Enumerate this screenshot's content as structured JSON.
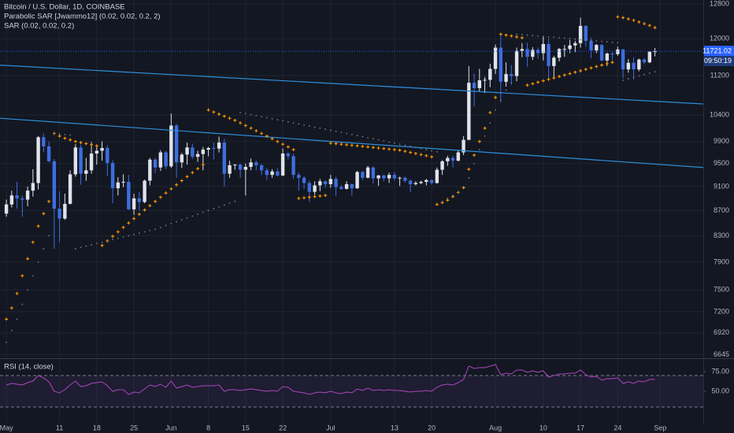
{
  "chart_data": [
    {
      "type": "candlestick",
      "title": "Bitcoin / U.S. Dollar, 1D, COINBASE",
      "open": [
        8650,
        8800,
        8950,
        8900,
        8880,
        9030,
        9160,
        9980,
        9810,
        9540,
        8730,
        8570,
        8810,
        9310,
        9790,
        9320,
        9380,
        9680,
        9730,
        9780,
        9510,
        9070,
        9170,
        9180,
        8720,
        8900,
        8840,
        9200,
        9570,
        9430,
        9700,
        9450,
        10200,
        9520,
        9660,
        9790,
        9620,
        9670,
        9750,
        9780,
        9770,
        9880,
        9320,
        9470,
        9480,
        9390,
        9440,
        9520,
        9470,
        9380,
        9300,
        9360,
        9290,
        9680,
        9630,
        9300,
        9250,
        9160,
        9010,
        9120,
        9190,
        9140,
        9230,
        9090,
        9060,
        9140,
        9070,
        9350,
        9250,
        9430,
        9240,
        9290,
        9240,
        9300,
        9240,
        9250,
        9200,
        9140,
        9160,
        9180,
        9210,
        9160,
        9390,
        9540,
        9600,
        9550,
        9700,
        9930,
        11050,
        10940,
        11100,
        11110,
        11340,
        11800,
        11070,
        11230,
        11190,
        11730,
        11770,
        11600,
        11750,
        11680,
        11880,
        11400,
        11580,
        11770,
        11770,
        11850,
        11900,
        12290,
        11950,
        11740,
        11860,
        11520,
        11670,
        11660,
        11760,
        11330,
        11470,
        11330,
        11540,
        11480,
        11710
      ],
      "high": [
        8880,
        9030,
        9180,
        8950,
        9100,
        9400,
        10000,
        10050,
        9900,
        9580,
        9020,
        8980,
        9380,
        9850,
        9840,
        9600,
        9890,
        9830,
        9900,
        9830,
        9560,
        9260,
        9310,
        9300,
        8980,
        9010,
        9220,
        9600,
        9600,
        9740,
        9730,
        10430,
        10230,
        9690,
        9880,
        9860,
        9730,
        9800,
        9800,
        9880,
        9990,
        9950,
        9550,
        9490,
        9500,
        9500,
        9590,
        9550,
        9490,
        9420,
        9400,
        9420,
        9770,
        9700,
        9680,
        9340,
        9280,
        9200,
        9190,
        9230,
        9200,
        9300,
        9270,
        9130,
        9190,
        9150,
        9370,
        9370,
        9460,
        9450,
        9300,
        9310,
        9340,
        9350,
        9270,
        9270,
        9220,
        9190,
        9200,
        9230,
        9220,
        9430,
        9560,
        9640,
        9640,
        9730,
        10000,
        11400,
        11240,
        11340,
        11170,
        11450,
        11870,
        12100,
        11480,
        11420,
        11800,
        11900,
        11910,
        11810,
        11800,
        12060,
        12000,
        11620,
        11790,
        11860,
        11970,
        11950,
        12480,
        12300,
        12020,
        11880,
        11880,
        11690,
        11700,
        11820,
        11770,
        11550,
        11590,
        11560,
        11570,
        11720,
        11790
      ],
      "low": [
        8600,
        8750,
        8730,
        8600,
        8770,
        8930,
        9050,
        9700,
        9520,
        8100,
        8200,
        8550,
        8800,
        9270,
        9130,
        9200,
        9320,
        9480,
        9550,
        9280,
        8820,
        8950,
        9090,
        8710,
        8630,
        8700,
        8820,
        9120,
        9330,
        9370,
        9400,
        9420,
        9250,
        9420,
        9480,
        9580,
        9530,
        9380,
        9630,
        9570,
        9700,
        9100,
        9250,
        9390,
        9250,
        8950,
        9380,
        9380,
        9300,
        9210,
        9250,
        9270,
        9280,
        9570,
        9230,
        9030,
        9060,
        8840,
        8960,
        9020,
        9080,
        9080,
        8940,
        9050,
        9050,
        8940,
        9060,
        9210,
        9240,
        9150,
        9110,
        9190,
        9160,
        9200,
        9110,
        9170,
        9000,
        9120,
        9140,
        9120,
        9130,
        9150,
        9300,
        9460,
        9430,
        9540,
        9650,
        9930,
        10570,
        10860,
        10840,
        10960,
        11230,
        10650,
        10970,
        11010,
        11080,
        11590,
        11390,
        11530,
        11560,
        11520,
        11140,
        11160,
        11500,
        11600,
        11680,
        11700,
        11800,
        11820,
        11570,
        11680,
        11500,
        11400,
        11530,
        11620,
        11140,
        11260,
        11120,
        11290,
        11440,
        11460,
        11610
      ],
      "close": [
        8800,
        8950,
        8900,
        8880,
        9030,
        9160,
        9980,
        9810,
        9540,
        8730,
        8570,
        8810,
        9310,
        9790,
        9320,
        9380,
        9680,
        9730,
        9780,
        9510,
        9070,
        9170,
        9180,
        8720,
        8900,
        8840,
        9200,
        9570,
        9430,
        9700,
        9450,
        10200,
        9520,
        9660,
        9790,
        9620,
        9670,
        9750,
        9780,
        9770,
        9880,
        9320,
        9470,
        9480,
        9390,
        9440,
        9520,
        9470,
        9380,
        9300,
        9360,
        9290,
        9680,
        9630,
        9300,
        9250,
        9160,
        9010,
        9120,
        9190,
        9140,
        9230,
        9090,
        9060,
        9140,
        9070,
        9350,
        9250,
        9430,
        9240,
        9290,
        9240,
        9300,
        9240,
        9250,
        9200,
        9140,
        9160,
        9180,
        9210,
        9160,
        9390,
        9540,
        9600,
        9550,
        9700,
        9930,
        11050,
        10940,
        11100,
        11110,
        11340,
        11800,
        11070,
        11230,
        11190,
        11730,
        11770,
        11600,
        11750,
        11680,
        11880,
        11400,
        11580,
        11770,
        11770,
        11850,
        11900,
        12290,
        11950,
        11740,
        11860,
        11520,
        11670,
        11660,
        11760,
        11330,
        11470,
        11330,
        11540,
        11480,
        11710,
        11721
      ],
      "up_color": "#e0e3eb",
      "down_color": "#3d6ee0",
      "log_scale": true,
      "grid": true,
      "xlim": [
        -1.2,
        131.1
      ],
      "xticks": [
        {
          "value": 0,
          "label": "May"
        },
        {
          "value": 10,
          "label": "11"
        },
        {
          "value": 17,
          "label": "18"
        },
        {
          "value": 24,
          "label": "25"
        },
        {
          "value": 31,
          "label": "Jun"
        },
        {
          "value": 38,
          "label": "8"
        },
        {
          "value": 45,
          "label": "15"
        },
        {
          "value": 52,
          "label": "22"
        },
        {
          "value": 61,
          "label": "Jul"
        },
        {
          "value": 73,
          "label": "13"
        },
        {
          "value": 80,
          "label": "20"
        },
        {
          "value": 92,
          "label": "Aug"
        },
        {
          "value": 101,
          "label": "10"
        },
        {
          "value": 108,
          "label": "17"
        },
        {
          "value": 115,
          "label": "24"
        },
        {
          "value": 123,
          "label": "Sep"
        }
      ],
      "ylim": [
        6600,
        12900
      ],
      "yticks": [
        12800,
        12000,
        11200,
        10400,
        9900,
        9500,
        9100,
        8700,
        8300,
        7900,
        7500,
        7200,
        6920,
        6645
      ],
      "series": [
        {
          "name": "Parabolic SAR [Jwammo12] (0.02, 0.02, 0.2, 2)",
          "color": "#ff9800",
          "values": [
            7100,
            7250,
            7450,
            7700,
            7950,
            8200,
            8450,
            8650,
            8850,
            10050,
            10000,
            9960,
            9930,
            9900,
            9880,
            9860,
            9840,
            9820,
            8150,
            8220,
            8290,
            8360,
            8430,
            8500,
            8570,
            8640,
            8710,
            8780,
            8850,
            8920,
            8990,
            9060,
            9130,
            9200,
            9270,
            9340,
            9410,
            9480,
            10500,
            10460,
            10420,
            10380,
            10340,
            10300,
            10250,
            10200,
            10150,
            10100,
            10050,
            10000,
            9950,
            9900,
            9850,
            9800,
            9750,
            8900,
            8910,
            8920,
            8930,
            8940,
            8950,
            9870,
            9860,
            9850,
            9840,
            9830,
            9820,
            9810,
            9800,
            9790,
            9780,
            9770,
            9760,
            9750,
            9740,
            9720,
            9700,
            9680,
            9660,
            9640,
            9620,
            8800,
            8830,
            8870,
            8930,
            9000,
            9080,
            9400,
            9650,
            9900,
            10150,
            10450,
            10750,
            12100,
            12080,
            12060,
            12040,
            12020,
            11000,
            11030,
            11060,
            11090,
            11120,
            11150,
            11180,
            11210,
            11240,
            11270,
            11300,
            11330,
            11360,
            11390,
            11420,
            11450,
            11480,
            12500,
            12480,
            12450,
            12420,
            12380,
            12340,
            12300,
            12250
          ]
        },
        {
          "name": "SAR (0.02, 0.02, 0.2)",
          "color": "#787b86",
          "values": [
            6800,
            6950,
            7100,
            7300,
            7500,
            7700,
            7900,
            8100,
            8300,
            10050,
            10040,
            10030,
            10020,
            8100,
            8120,
            8140,
            8160,
            8180,
            8200,
            8220,
            8240,
            8260,
            8280,
            8300,
            8320,
            8340,
            8360,
            8380,
            8400,
            8430,
            8460,
            8490,
            8520,
            8550,
            8580,
            8610,
            8640,
            8670,
            8700,
            8730,
            8760,
            8790,
            8820,
            8850,
            10450,
            10430,
            10410,
            10390,
            10370,
            10350,
            10330,
            10310,
            10290,
            10270,
            10250,
            10230,
            10210,
            10190,
            10170,
            10150,
            10130,
            10110,
            10090,
            10070,
            10050,
            10030,
            10010,
            9990,
            9970,
            9950,
            9930,
            9910,
            9890,
            9870,
            9850,
            9830,
            9810,
            9790,
            9770,
            9750,
            9730,
            9710,
            8850,
            8900,
            8950,
            9000,
            9100,
            9250,
            9500,
            9750,
            10000,
            10250,
            10500,
            10700,
            10900,
            11050,
            12100,
            12090,
            12080,
            12070,
            12060,
            12050,
            12040,
            12030,
            12020,
            12010,
            12000,
            11990,
            11980,
            11970,
            11960,
            11950,
            11940,
            11930,
            11920,
            11910,
            11100,
            11130,
            11160,
            11190,
            11220,
            11250,
            11280
          ]
        }
      ],
      "trendlines": [
        {
          "color": "#2e8fdc",
          "x": [
            -1.2,
            131.1
          ],
          "y": [
            11420,
            10620
          ]
        },
        {
          "color": "#2e8fdc",
          "x": [
            -1.2,
            131.1
          ],
          "y": [
            10340,
            9430
          ]
        }
      ],
      "last_price": 11721.02,
      "last_price_color": "#2962ff",
      "countdown": "09:50:19"
    },
    {
      "type": "line",
      "title": "RSI (14, close)",
      "series": [
        {
          "name": "RSI",
          "color": "#ab47bc",
          "values": [
            58,
            60,
            59,
            58,
            61,
            63,
            70,
            67,
            62,
            50,
            48,
            52,
            58,
            63,
            56,
            57,
            60,
            61,
            62,
            57,
            50,
            52,
            52,
            46,
            49,
            48,
            53,
            58,
            56,
            59,
            55,
            63,
            54,
            56,
            58,
            55,
            56,
            57,
            57,
            57,
            58,
            50,
            52,
            52,
            51,
            52,
            53,
            52,
            51,
            50,
            51,
            50,
            56,
            55,
            50,
            49,
            48,
            46,
            48,
            49,
            48,
            50,
            48,
            47,
            49,
            48,
            53,
            51,
            54,
            51,
            52,
            51,
            52,
            51,
            51,
            50,
            49,
            50,
            50,
            51,
            50,
            55,
            58,
            59,
            58,
            61,
            65,
            82,
            79,
            80,
            80,
            82,
            84,
            71,
            73,
            72,
            77,
            77,
            74,
            76,
            74,
            76,
            68,
            70,
            72,
            72,
            73,
            73,
            77,
            71,
            68,
            69,
            64,
            66,
            66,
            67,
            60,
            62,
            60,
            63,
            62,
            65,
            65
          ]
        }
      ],
      "ylim": [
        10,
        91
      ],
      "yticks": [
        {
          "value": 75,
          "label": "75.00"
        },
        {
          "value": 50,
          "label": "50.00"
        }
      ],
      "band": [
        30,
        70
      ],
      "band_color": "#7e57c2"
    }
  ]
}
